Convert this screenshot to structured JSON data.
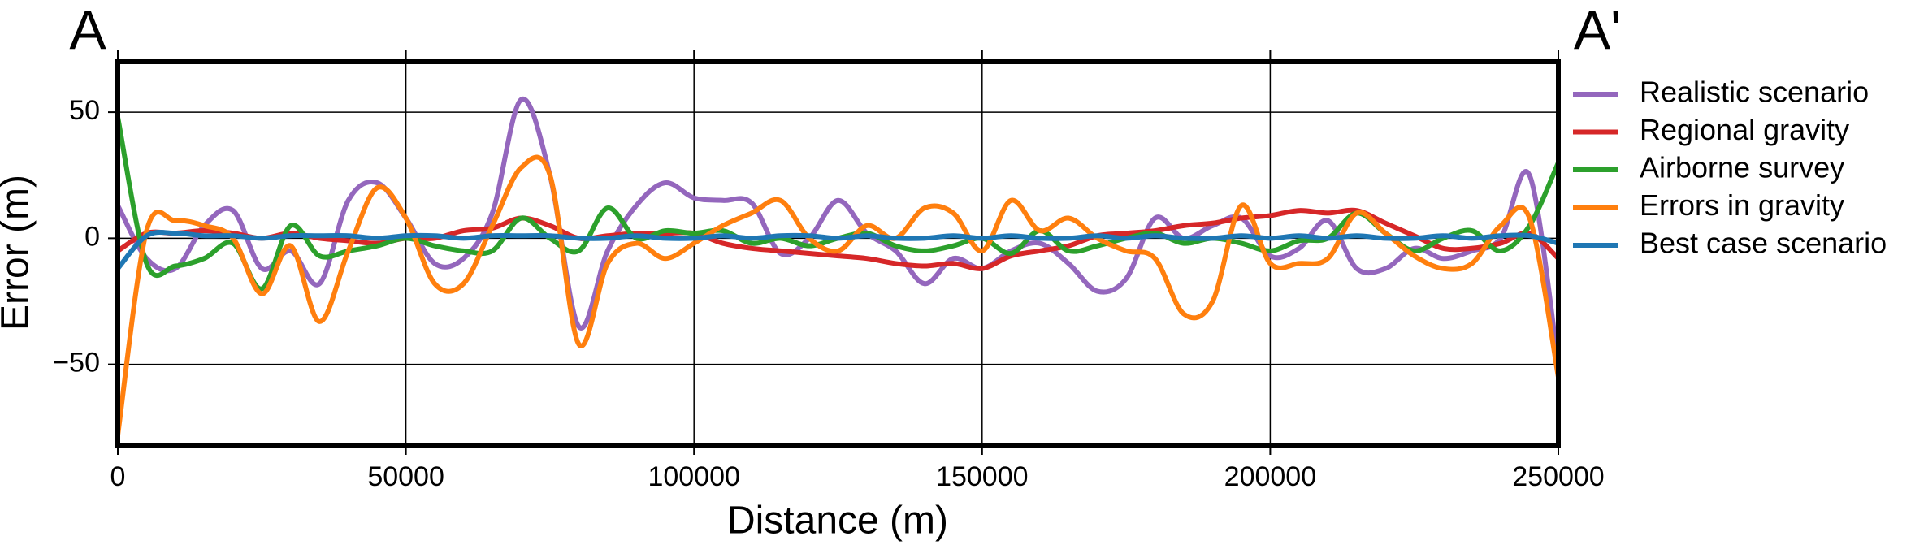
{
  "chart_data": {
    "type": "line",
    "corner_labels": [
      "A",
      "A'"
    ],
    "xlabel": "Distance (m)",
    "ylabel": "Error (m)",
    "xlim": [
      0,
      250000
    ],
    "ylim": [
      -82,
      70
    ],
    "xticks": [
      0,
      50000,
      100000,
      150000,
      200000,
      250000
    ],
    "yticks": [
      {
        "value": -50,
        "label": "−50"
      },
      0,
      50
    ],
    "grid": true,
    "legend": "outside-right",
    "x": [
      0,
      5000,
      10000,
      15000,
      20000,
      25000,
      30000,
      35000,
      40000,
      45000,
      50000,
      55000,
      60000,
      65000,
      70000,
      75000,
      80000,
      85000,
      90000,
      95000,
      100000,
      105000,
      110000,
      115000,
      120000,
      125000,
      130000,
      135000,
      140000,
      145000,
      150000,
      155000,
      160000,
      165000,
      170000,
      175000,
      180000,
      185000,
      190000,
      195000,
      200000,
      205000,
      210000,
      215000,
      220000,
      225000,
      230000,
      235000,
      240000,
      245000,
      250000
    ],
    "series": [
      {
        "name": "Realistic scenario",
        "color": "#9467bd",
        "values": [
          13,
          -8,
          -12,
          5,
          11,
          -12,
          -5,
          -18,
          15,
          22,
          8,
          -10,
          -8,
          10,
          55,
          25,
          -35,
          -5,
          13,
          22,
          16,
          15,
          14,
          -6,
          0,
          15,
          2,
          -5,
          -18,
          -8,
          -12,
          -5,
          -2,
          -10,
          -21,
          -16,
          8,
          0,
          5,
          8,
          -7,
          -4,
          7,
          -12,
          -12,
          -4,
          -8,
          -5,
          0,
          25,
          -50
        ]
      },
      {
        "name": "Regional gravity",
        "color": "#d62728",
        "values": [
          -5,
          2,
          2,
          3,
          2,
          0,
          2,
          0,
          -1,
          -2,
          0,
          0,
          3,
          4,
          8,
          5,
          0,
          1,
          2,
          2,
          2,
          -2,
          -4,
          -5,
          -6,
          -7,
          -8,
          -10,
          -11,
          -10,
          -12,
          -7,
          -5,
          -3,
          1,
          2,
          3,
          5,
          6,
          8,
          9,
          11,
          10,
          11,
          6,
          1,
          -4,
          -4,
          -2,
          2,
          -8
        ]
      },
      {
        "name": "Airborne survey",
        "color": "#2ca02c",
        "values": [
          48,
          -10,
          -11,
          -8,
          -2,
          -20,
          5,
          -7,
          -5,
          -3,
          0,
          -3,
          -5,
          -5,
          8,
          0,
          -5,
          12,
          0,
          3,
          2,
          3,
          -2,
          0,
          -3,
          0,
          2,
          -3,
          -5,
          -3,
          0,
          -6,
          3,
          -5,
          -3,
          0,
          2,
          -2,
          0,
          -2,
          -5,
          -1,
          0,
          10,
          2,
          -5,
          0,
          3,
          -5,
          5,
          30
        ]
      },
      {
        "name": "Errors in gravity",
        "color": "#ff7f0e",
        "values": [
          -78,
          3,
          7,
          5,
          0,
          -22,
          -3,
          -33,
          -5,
          20,
          8,
          -18,
          -18,
          5,
          28,
          25,
          -42,
          -10,
          -2,
          -8,
          -2,
          5,
          10,
          15,
          0,
          -5,
          5,
          0,
          12,
          10,
          -5,
          15,
          3,
          8,
          0,
          -5,
          -8,
          -30,
          -25,
          13,
          -10,
          -10,
          -8,
          10,
          2,
          -7,
          -12,
          -10,
          5,
          8,
          -55
        ]
      },
      {
        "name": "Best case scenario",
        "color": "#1f77b4",
        "values": [
          -12,
          1,
          2,
          1,
          1,
          0,
          1,
          1,
          1,
          0,
          1,
          1,
          0,
          1,
          1,
          1,
          0,
          0,
          1,
          0,
          0,
          1,
          0,
          1,
          1,
          0,
          1,
          0,
          0,
          1,
          0,
          1,
          0,
          0,
          1,
          0,
          1,
          0,
          0,
          1,
          0,
          1,
          0,
          1,
          0,
          0,
          1,
          0,
          1,
          1,
          -2
        ]
      }
    ]
  }
}
